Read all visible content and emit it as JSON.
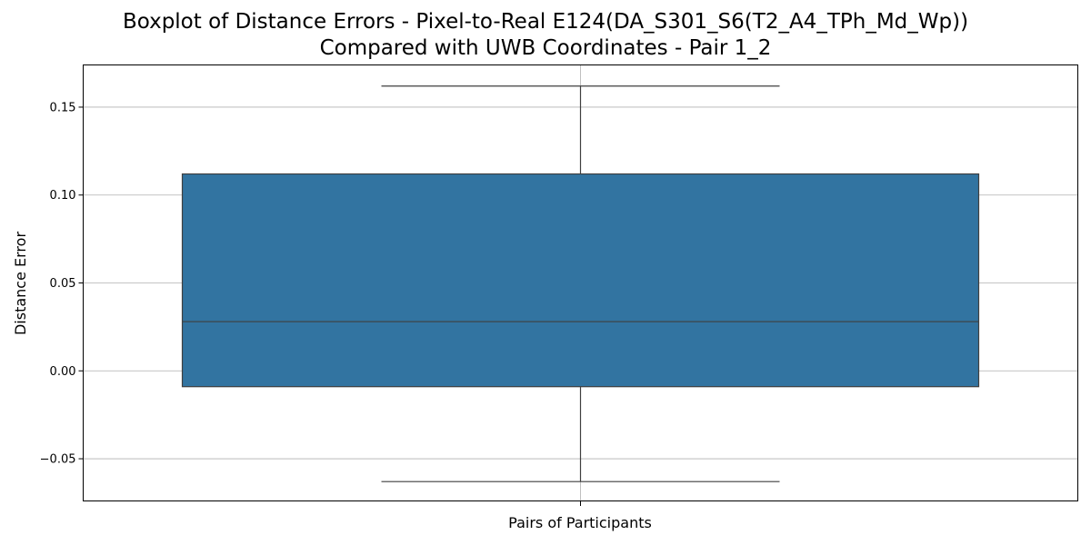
{
  "chart_data": {
    "type": "box",
    "title_lines": [
      "Boxplot of Distance Errors - Pixel-to-Real E124(DA_S301_S6(T2_A4_TPh_Md_Wp))",
      "Compared with UWB Coordinates - Pair 1_2"
    ],
    "xlabel": "Pairs of Participants",
    "ylabel": "Distance Error",
    "ylim": [
      -0.074,
      0.174
    ],
    "yticks": [
      -0.05,
      0.0,
      0.05,
      0.1,
      0.15
    ],
    "ytick_labels": [
      "−0.05",
      "0.00",
      "0.05",
      "0.10",
      "0.15"
    ],
    "grid": true,
    "box": {
      "whisker_low": -0.063,
      "q1": -0.009,
      "median": 0.028,
      "q3": 0.112,
      "whisker_high": 0.162
    },
    "colors": {
      "box_fill": "#3274a1",
      "line": "#3f3f3f",
      "grid": "#b0b0b0"
    }
  }
}
